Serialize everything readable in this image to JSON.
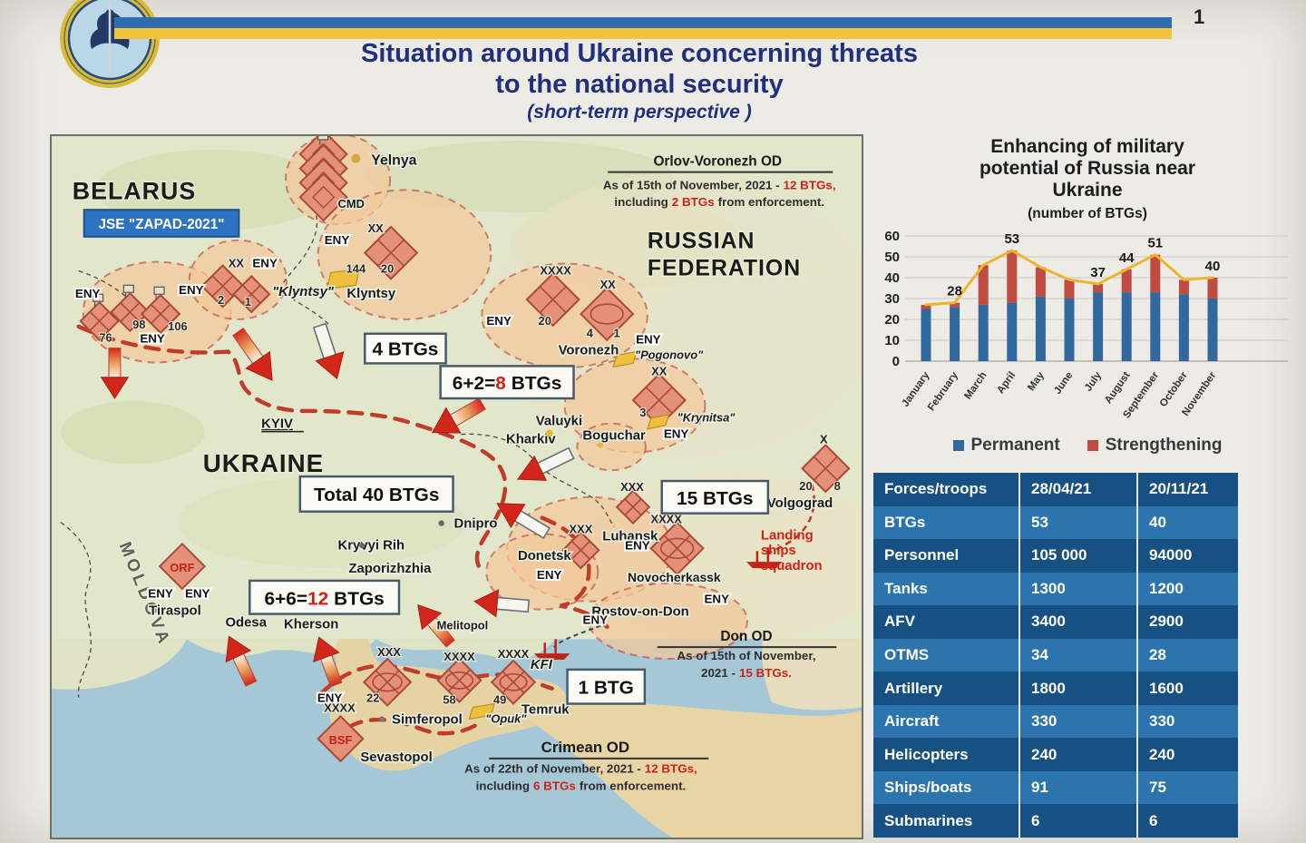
{
  "page": {
    "number": "1"
  },
  "header": {
    "title_line1": "Situation around Ukraine concerning threats",
    "title_line2": "to the national security",
    "title_line3": "(short-term perspective )"
  },
  "chart": {
    "title_line1": "Enhancing of military",
    "title_line2": "potential of Russia near",
    "title_line3": "Ukraine",
    "subtitle": "(number of BTGs)",
    "legend_permanent": "Permanent",
    "legend_strengthening": "Strengthening"
  },
  "chart_data": {
    "type": "bar",
    "stacked": true,
    "categories": [
      "January",
      "February",
      "March",
      "April",
      "May",
      "June",
      "July",
      "August",
      "September",
      "October",
      "November"
    ],
    "series": [
      {
        "name": "Permanent",
        "type": "bar",
        "color": "#31699e",
        "values": [
          25,
          26,
          27,
          28,
          31,
          30,
          33,
          33,
          33,
          32,
          30
        ]
      },
      {
        "name": "Strengthening",
        "type": "bar",
        "color": "#bf4b41",
        "values": [
          2,
          2,
          19,
          25,
          14,
          9,
          4,
          11,
          18,
          7,
          10
        ]
      }
    ],
    "totals": [
      27,
      28,
      46,
      53,
      45,
      39,
      37,
      44,
      51,
      39,
      40
    ],
    "point_labels": [
      null,
      "28",
      null,
      "53",
      null,
      null,
      "37",
      "44",
      "51",
      null,
      "40"
    ],
    "line_color": "#f0b32e",
    "title": "Enhancing of military potential of Russia near Ukraine",
    "subtitle": "(number of BTGs)",
    "xlabel": "",
    "ylabel": "",
    "ylim": [
      0,
      60
    ],
    "ytick_step": 10,
    "grid": true,
    "legend_position": "bottom"
  },
  "table": {
    "headers": [
      "Forces/troops",
      "28/04/21",
      "20/11/21"
    ],
    "rows": [
      [
        "BTGs",
        "53",
        "40"
      ],
      [
        "Personnel",
        "105 000",
        "94000"
      ],
      [
        "Tanks",
        "1300",
        "1200"
      ],
      [
        "AFV",
        "3400",
        "2900"
      ],
      [
        "OTMS",
        "34",
        "28"
      ],
      [
        "Artillery",
        "1800",
        "1600"
      ],
      [
        "Aircraft",
        "330",
        "330"
      ],
      [
        "Helicopters",
        "240",
        "240"
      ],
      [
        "Ships/boats",
        "91",
        "75"
      ],
      [
        "Submarines",
        "6",
        "6"
      ]
    ]
  },
  "map": {
    "countries": {
      "belarus": "BELARUS",
      "ukraine": "UKRAINE",
      "russia1": "RUSSIAN",
      "russia2": "FEDERATION",
      "moldova": "MOLDOVA"
    },
    "exercise": "JSE \"ZAPAD-2021\"",
    "marks": {
      "eny": "ENY",
      "x1": "X",
      "x2": "XX",
      "x3": "XXX",
      "x4": "XXXX",
      "cmd": "CMD",
      "kfi": "KFI",
      "bsf": "BSF",
      "orf": "ORF"
    },
    "cities": {
      "yelnya": "Yelnya",
      "klyntsy_q": "\"Klyntsy\"",
      "klyntsy": "Klyntsy",
      "kyiv": "KYIV",
      "kharkiv": "Kharkiv",
      "valuyki": "Valuyki",
      "boguchar": "Boguchar",
      "voronezh": "Voronezh",
      "pogonovo": "\"Pogonovo\"",
      "krynitsa": "\"Krynitsa\"",
      "volgograd": "Volgograd",
      "luhansk": "Luhansk",
      "donetsk": "Donetsk",
      "novocherkassk": "Novocherkassk",
      "rostov": "Rostov-on-Don",
      "dnipro": "Dnipro",
      "kryvyi_rih": "Kryvyi Rih",
      "zaporizhzhia": "Zaporizhzhia",
      "melitopol": "Melitopol",
      "odesa": "Odesa",
      "kherson": "Kherson",
      "tiraspol": "Tiraspol",
      "simferopol": "Simferopol",
      "sevastopol": "Sevastopol",
      "temruk": "Temruk",
      "opuk": "\"Opuk\""
    },
    "numbers": {
      "n1": "1",
      "n2": "2",
      "n3": "3",
      "n4": "4",
      "n8": "8",
      "n20": "20",
      "n22": "22",
      "n49": "49",
      "n58": "58",
      "n76": "76",
      "n98": "98",
      "n106": "106",
      "n144": "144"
    },
    "boxes": {
      "b4": "4 BTGs",
      "b8a": "6+2=",
      "b8b": "8",
      "b8c": "BTGs",
      "total": "Total 40 BTGs",
      "b15": "15 BTGs",
      "b12a": "6+6=",
      "b12b": "12",
      "b12c": "BTGs",
      "b1": "1 BTG"
    },
    "notes": {
      "orlov_title": "Orlov-Voronezh OD",
      "orlov_2a": "As of 15th of November, 2021 -",
      "orlov_2b": "12 BTGs,",
      "orlov_3a": "including",
      "orlov_3b": "2 BTGs",
      "orlov_3c": "from enforcement.",
      "don_title": "Don OD",
      "don_2": "As of 15th of November,",
      "don_3a": "2021 -",
      "don_3b": "15 BTGs.",
      "crimea_title": "Crimean OD",
      "crimea_2a": "As of 22th of November, 2021 -",
      "crimea_2b": "12 BTGs,",
      "crimea_3a": "including",
      "crimea_3b": "6 BTGs",
      "crimea_3c": "from enforcement."
    },
    "landing": {
      "l1": "Landing",
      "l2": "ships",
      "l3": "squadron"
    }
  },
  "colors": {
    "accent_blue": "#20307f",
    "stripe_blue": "#2f6cb0",
    "stripe_yellow": "#f0c53d",
    "bar_permanent": "#31699e",
    "bar_strengthening": "#bf4b41",
    "line_yellow": "#f0b32e",
    "table_row_dark": "#175083",
    "table_row_light": "#2b74ad",
    "red_text": "#cc2218"
  }
}
